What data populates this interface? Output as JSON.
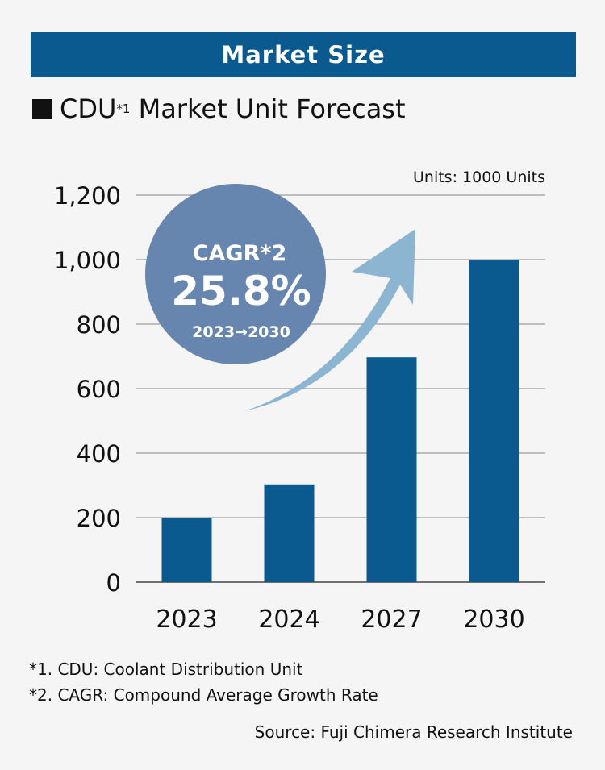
{
  "banner": "Market Size",
  "title": {
    "prefix": "CDU",
    "sup": "*1",
    "rest": " Market Unit Forecast"
  },
  "colors": {
    "bar": "#0b5a8f",
    "circle": "#6686b0",
    "arrow": "#8cb5d2",
    "grid": "#777777"
  },
  "badge": {
    "label": "CAGR*2",
    "value": "25.8%",
    "period": "2023→2030"
  },
  "chart_data": {
    "type": "bar",
    "title": "CDU*1 Market Unit Forecast",
    "unit_label": "Units: 1000 Units",
    "categories": [
      "2023",
      "2024",
      "2027",
      "2030"
    ],
    "values": [
      200,
      303,
      697,
      1000
    ],
    "ylim": [
      0,
      1200
    ],
    "yticks": [
      0,
      200,
      400,
      600,
      800,
      1000,
      1200
    ],
    "ytick_labels": [
      "0",
      "200",
      "400",
      "600",
      "800",
      "1,000",
      "1,200"
    ],
    "grid": true
  },
  "footnotes": [
    "*1. CDU: Coolant Distribution Unit",
    "*2. CAGR: Compound Average Growth Rate"
  ],
  "source": "Source: Fuji Chimera Research Institute"
}
